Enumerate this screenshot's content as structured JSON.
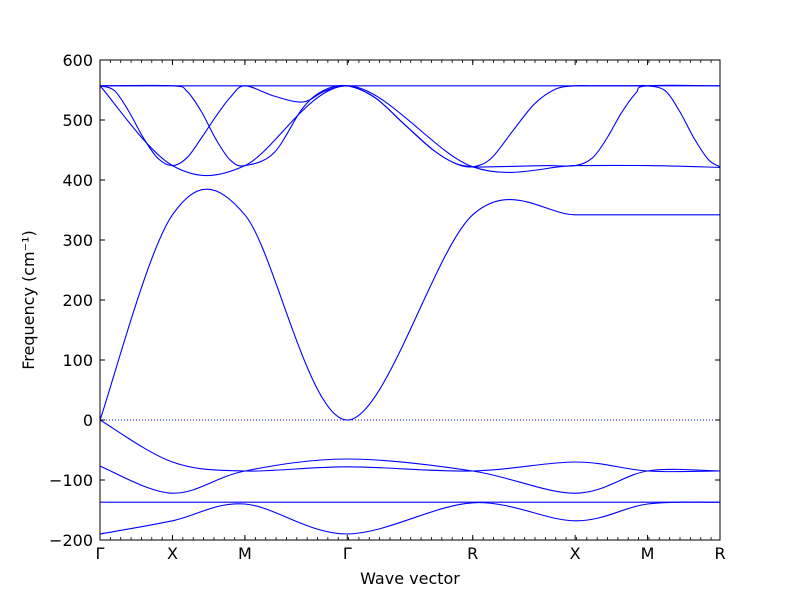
{
  "chart_data": {
    "type": "line",
    "title": "",
    "xlabel": "Wave vector",
    "ylabel": "Frequency (cm⁻¹)",
    "ylim": [
      -200,
      600
    ],
    "yticks": [
      -200,
      -100,
      0,
      100,
      200,
      300,
      400,
      500,
      600
    ],
    "ytick_labels": [
      "−200",
      "−100",
      "0",
      "100",
      "200",
      "300",
      "400",
      "500",
      "600"
    ],
    "x_high_symmetry_points": [
      {
        "label": "Γ",
        "x": 0.0
      },
      {
        "label": "X",
        "x": 0.5
      },
      {
        "label": "M",
        "x": 1.0
      },
      {
        "label": "Γ",
        "x": 1.707
      },
      {
        "label": "R",
        "x": 2.573
      },
      {
        "label": "X",
        "x": 3.28
      },
      {
        "label": "M",
        "x": 3.78
      },
      {
        "label": "R",
        "x": 4.28
      }
    ],
    "xlim": [
      0,
      4.28
    ],
    "zero_line": {
      "y": 0,
      "style": "dotted",
      "color": "#0000ff"
    },
    "line_color": "#0000ff",
    "grid": false,
    "series": [
      {
        "x": [
          0,
          0.25,
          0.5,
          0.75,
          1.0,
          1.354,
          1.707,
          2.14,
          2.573,
          2.93,
          3.28,
          3.53,
          3.78,
          4.03,
          4.28
        ],
        "values": [
          557,
          557,
          557,
          557,
          557,
          557,
          557,
          557,
          557,
          557,
          557,
          557,
          557,
          557,
          557
        ]
      },
      {
        "x": [
          0,
          0.1,
          0.2,
          0.3,
          0.4,
          0.5,
          0.6,
          0.7,
          0.8,
          0.9,
          1.0,
          1.2,
          1.4,
          1.55,
          1.707,
          1.9,
          2.1,
          2.3,
          2.45,
          2.573,
          2.7,
          2.85,
          3.0,
          3.15,
          3.28,
          3.4,
          3.55,
          3.7,
          3.78,
          3.9,
          4.0,
          4.1,
          4.2,
          4.28
        ],
        "values": [
          557,
          549,
          514,
          470,
          436,
          424,
          437,
          470,
          506,
          538,
          557,
          540,
          530,
          548,
          557,
          537,
          493,
          450,
          428,
          422,
          436,
          482,
          527,
          552,
          557,
          557,
          557,
          557,
          557,
          549,
          515,
          470,
          434,
          422
        ]
      },
      {
        "x": [
          0,
          0.5,
          0.6,
          0.7,
          0.8,
          0.9,
          1.0,
          1.2,
          1.4,
          1.55,
          1.707,
          1.9,
          2.1,
          2.3,
          2.45,
          2.573,
          2.7,
          2.9,
          3.1,
          3.28,
          3.4,
          3.5,
          3.6,
          3.7,
          3.78,
          4.28
        ],
        "values": [
          557,
          557,
          548,
          514,
          468,
          433,
          424,
          445,
          520,
          550,
          557,
          537,
          493,
          450,
          428,
          422,
          422,
          423,
          424,
          424,
          437,
          470,
          512,
          545,
          557,
          557
        ]
      },
      {
        "x": [
          0,
          0.5,
          1.0,
          1.707,
          2.573,
          3.28,
          3.78,
          4.28
        ],
        "values": [
          557,
          424,
          424,
          557,
          422,
          424,
          424,
          421
        ]
      },
      {
        "x": [
          0,
          0.5,
          1.0,
          1.707,
          2.573,
          3.28,
          3.78,
          4.28
        ],
        "values": [
          0,
          342,
          342,
          0,
          342,
          342,
          342,
          342
        ]
      },
      {
        "x": [
          0,
          0.5,
          1.0,
          1.707,
          2.573,
          3.28,
          3.78,
          4.28
        ],
        "values": [
          0,
          -70,
          -85,
          -78,
          -85,
          -70,
          -85,
          -85
        ]
      },
      {
        "x": [
          0,
          0.5,
          1.0,
          1.707,
          2.573,
          3.28,
          3.78,
          4.28
        ],
        "values": [
          -77,
          -122,
          -85,
          -65,
          -85,
          -122,
          -85,
          -85
        ]
      },
      {
        "x": [
          0,
          0.5,
          1.0,
          1.707,
          2.573,
          3.28,
          3.78,
          4.28
        ],
        "values": [
          -190,
          -168,
          -140,
          -190,
          -138,
          -168,
          -140,
          -137
        ]
      },
      {
        "x": [
          0,
          0.5,
          1.0,
          1.707,
          2.573,
          3.28,
          3.78,
          4.28
        ],
        "values": [
          -137,
          -137,
          -137,
          -137,
          -137,
          -137,
          -137,
          -137
        ]
      }
    ]
  }
}
